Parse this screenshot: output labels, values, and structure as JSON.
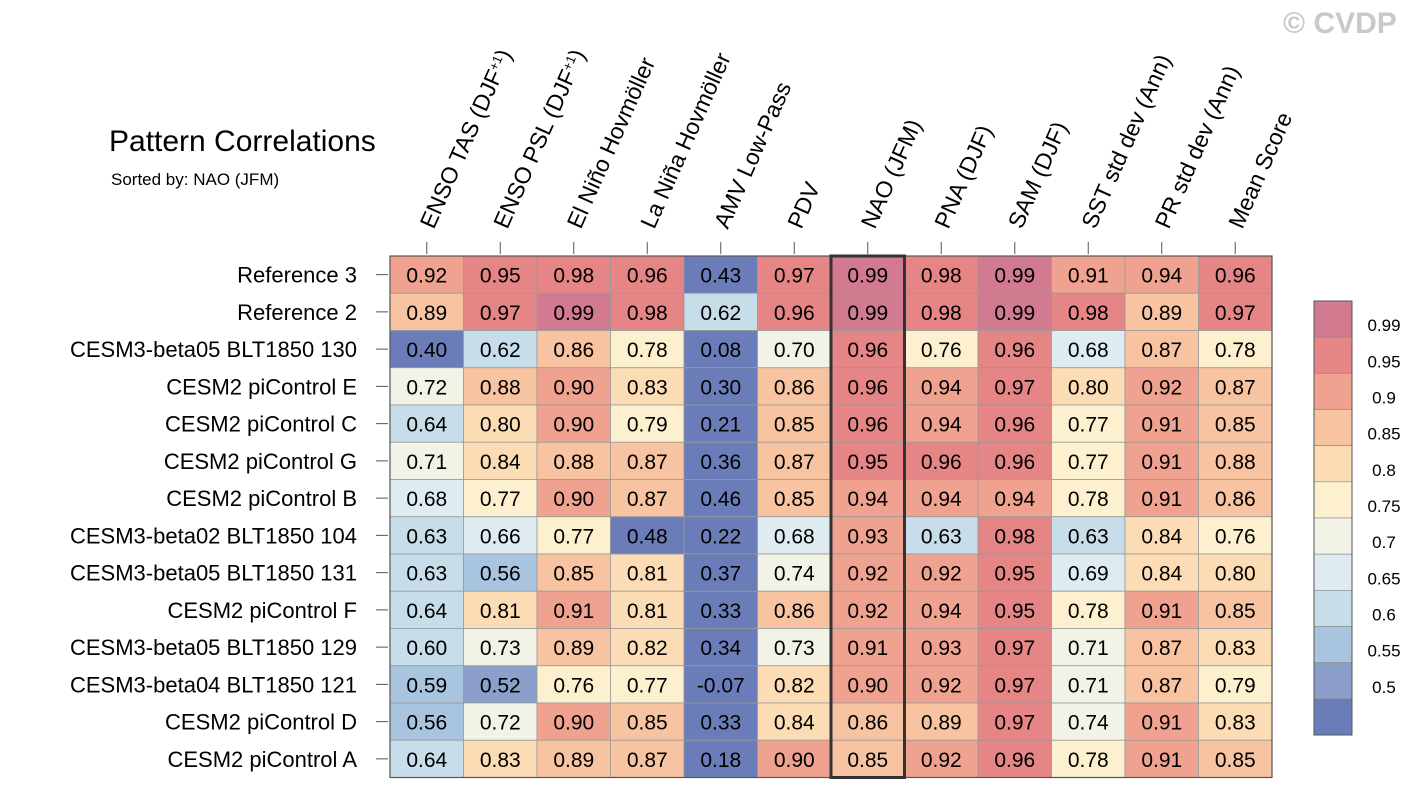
{
  "watermark": "© CVDP",
  "chart_data": {
    "type": "heatmap",
    "title": "Pattern Correlations",
    "subtitle": "Sorted by: NAO (JFM)",
    "columns": [
      {
        "label": "ENSO TAS (DJF",
        "sup": "+1",
        "suffix": ")"
      },
      {
        "label": "ENSO PSL (DJF",
        "sup": "+1",
        "suffix": ")"
      },
      {
        "label": "El Niño Hovmöller",
        "sup": "",
        "suffix": ""
      },
      {
        "label": "La Niña Hovmöller",
        "sup": "",
        "suffix": ""
      },
      {
        "label": "AMV Low-Pass",
        "sup": "",
        "suffix": ""
      },
      {
        "label": "PDV",
        "sup": "",
        "suffix": ""
      },
      {
        "label": "NAO (JFM)",
        "sup": "",
        "suffix": ""
      },
      {
        "label": "PNA (DJF)",
        "sup": "",
        "suffix": ""
      },
      {
        "label": "SAM (DJF)",
        "sup": "",
        "suffix": ""
      },
      {
        "label": "SST std dev (Ann)",
        "sup": "",
        "suffix": ""
      },
      {
        "label": "PR std dev (Ann)",
        "sup": "",
        "suffix": ""
      },
      {
        "label": "Mean Score",
        "sup": "",
        "suffix": ""
      }
    ],
    "highlight_column": 6,
    "rows": [
      "Reference 3",
      "Reference 2",
      "CESM3-beta05 BLT1850 130",
      "CESM2 piControl E",
      "CESM2 piControl C",
      "CESM2 piControl G",
      "CESM2 piControl B",
      "CESM3-beta02 BLT1850 104",
      "CESM3-beta05 BLT1850 131",
      "CESM2 piControl F",
      "CESM3-beta05 BLT1850 129",
      "CESM3-beta04 BLT1850 121",
      "CESM2 piControl D",
      "CESM2 piControl A"
    ],
    "values": [
      [
        "0.92",
        "0.95",
        "0.98",
        "0.96",
        "0.43",
        "0.97",
        "0.99",
        "0.98",
        "0.99",
        "0.91",
        "0.94",
        "0.96"
      ],
      [
        "0.89",
        "0.97",
        "0.99",
        "0.98",
        "0.62",
        "0.96",
        "0.99",
        "0.98",
        "0.99",
        "0.98",
        "0.89",
        "0.97"
      ],
      [
        "0.40",
        "0.62",
        "0.86",
        "0.78",
        "0.08",
        "0.70",
        "0.96",
        "0.76",
        "0.96",
        "0.68",
        "0.87",
        "0.78"
      ],
      [
        "0.72",
        "0.88",
        "0.90",
        "0.83",
        "0.30",
        "0.86",
        "0.96",
        "0.94",
        "0.97",
        "0.80",
        "0.92",
        "0.87"
      ],
      [
        "0.64",
        "0.80",
        "0.90",
        "0.79",
        "0.21",
        "0.85",
        "0.96",
        "0.94",
        "0.96",
        "0.77",
        "0.91",
        "0.85"
      ],
      [
        "0.71",
        "0.84",
        "0.88",
        "0.87",
        "0.36",
        "0.87",
        "0.95",
        "0.96",
        "0.96",
        "0.77",
        "0.91",
        "0.88"
      ],
      [
        "0.68",
        "0.77",
        "0.90",
        "0.87",
        "0.46",
        "0.85",
        "0.94",
        "0.94",
        "0.94",
        "0.78",
        "0.91",
        "0.86"
      ],
      [
        "0.63",
        "0.66",
        "0.77",
        "0.48",
        "0.22",
        "0.68",
        "0.93",
        "0.63",
        "0.98",
        "0.63",
        "0.84",
        "0.76"
      ],
      [
        "0.63",
        "0.56",
        "0.85",
        "0.81",
        "0.37",
        "0.74",
        "0.92",
        "0.92",
        "0.95",
        "0.69",
        "0.84",
        "0.80"
      ],
      [
        "0.64",
        "0.81",
        "0.91",
        "0.81",
        "0.33",
        "0.86",
        "0.92",
        "0.94",
        "0.95",
        "0.78",
        "0.91",
        "0.85"
      ],
      [
        "0.60",
        "0.73",
        "0.89",
        "0.82",
        "0.34",
        "0.73",
        "0.91",
        "0.93",
        "0.97",
        "0.71",
        "0.87",
        "0.83"
      ],
      [
        "0.59",
        "0.52",
        "0.76",
        "0.77",
        "-0.07",
        "0.82",
        "0.90",
        "0.92",
        "0.97",
        "0.71",
        "0.87",
        "0.79"
      ],
      [
        "0.56",
        "0.72",
        "0.90",
        "0.85",
        "0.33",
        "0.84",
        "0.86",
        "0.89",
        "0.97",
        "0.74",
        "0.91",
        "0.83"
      ],
      [
        "0.64",
        "0.83",
        "0.89",
        "0.87",
        "0.18",
        "0.90",
        "0.85",
        "0.92",
        "0.96",
        "0.78",
        "0.91",
        "0.85"
      ]
    ],
    "colorbar": {
      "levels": [
        "0.99",
        "0.95",
        "0.9",
        "0.85",
        "0.8",
        "0.75",
        "0.7",
        "0.65",
        "0.6",
        "0.55",
        "0.5"
      ],
      "colors": [
        "#d27a8f",
        "#e58585",
        "#f0a290",
        "#f7c3a1",
        "#fbdcb4",
        "#fcf0cf",
        "#f2f2e7",
        "#deebf1",
        "#c7dde9",
        "#a9c4de",
        "#8c9fcb",
        "#6b7db8"
      ]
    }
  }
}
